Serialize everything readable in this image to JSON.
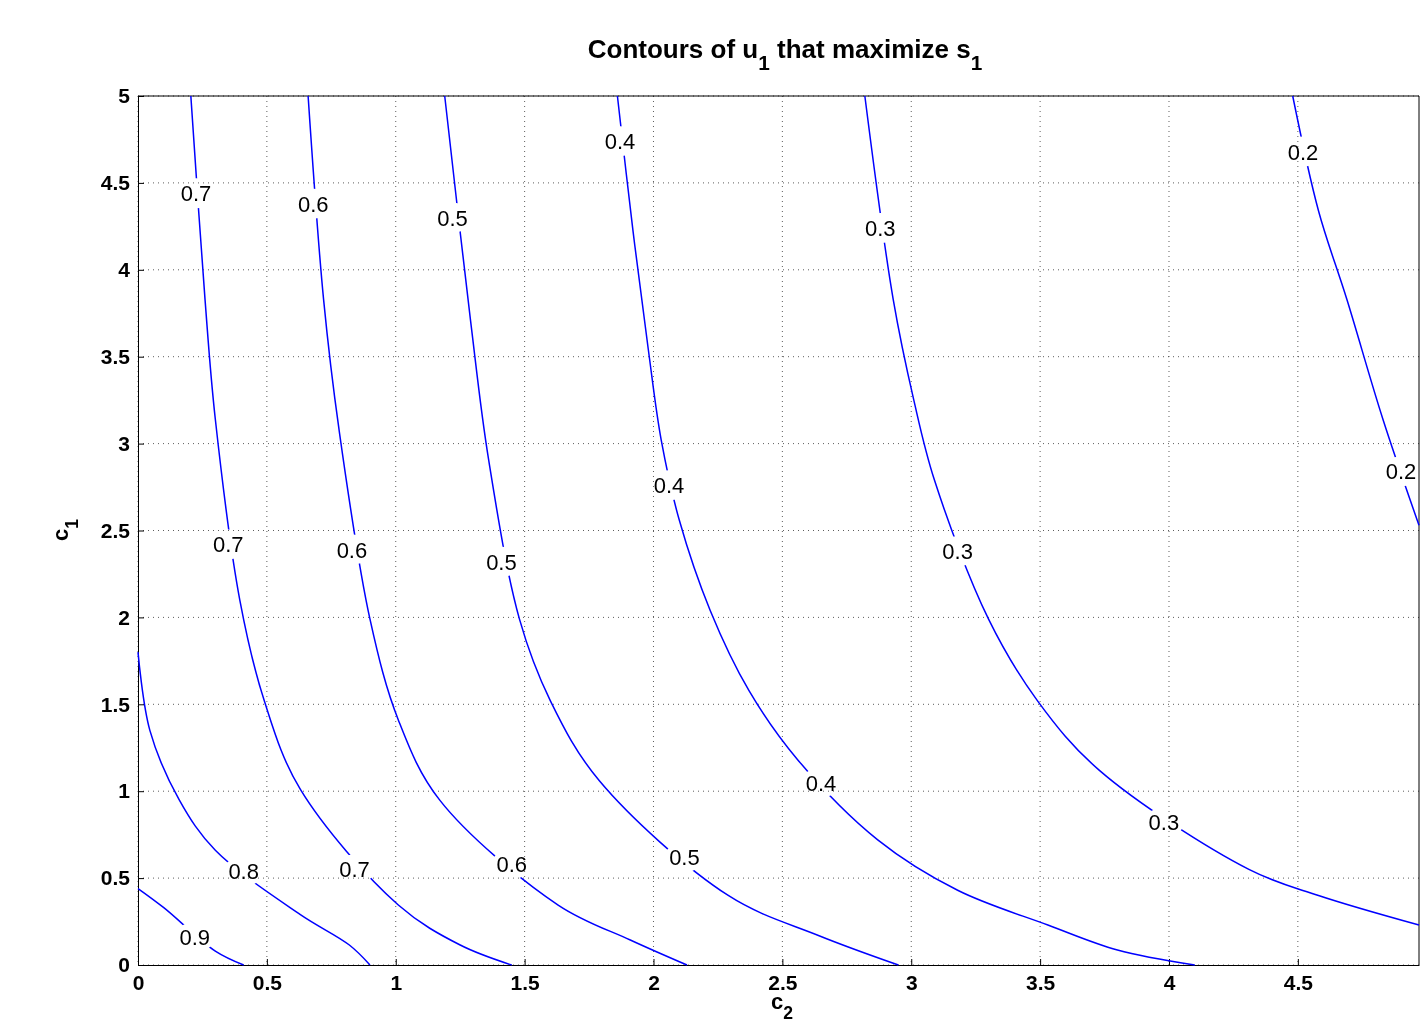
{
  "chart_data": {
    "type": "line",
    "title": "Contours of u$_{1}$ that maximize s$_{1}$",
    "xlabel": "c$_{2}$",
    "ylabel": "c$_{1}$",
    "xlim": [
      0,
      4.97
    ],
    "ylim": [
      0,
      5
    ],
    "xticks": [
      0,
      0.5,
      1,
      1.5,
      2,
      2.5,
      3,
      3.5,
      4,
      4.5
    ],
    "yticks": [
      0,
      0.5,
      1,
      1.5,
      2,
      2.5,
      3,
      3.5,
      4,
      4.5,
      5
    ],
    "grid": true,
    "marker": "none",
    "line_style": "solid",
    "series": [
      {
        "color": "#0000ff",
        "x": [
          0,
          0.1,
          0.3,
          0.41
        ],
        "values": [
          0.44,
          0.33,
          0.08,
          0
        ]
      },
      {
        "color": "#0000ff",
        "x": [
          0,
          0.046,
          0.16,
          0.3,
          0.63,
          0.82,
          0.9
        ],
        "values": [
          1.8,
          1.35,
          0.95,
          0.66,
          0.29,
          0.115,
          0
        ]
      },
      {
        "color": "#0000ff",
        "x": [
          0.205,
          0.26,
          0.3,
          0.395,
          0.49,
          0.63,
          1.01,
          1.25,
          1.45
        ],
        "values": [
          5,
          3.83,
          3.14,
          2.1,
          1.52,
          1.01,
          0.345,
          0.115,
          0
        ]
      },
      {
        "color": "#0000ff",
        "x": [
          0.66,
          0.72,
          0.78,
          0.9,
          1.01,
          1.17,
          1.63,
          1.91,
          2.13
        ],
        "values": [
          5,
          3.83,
          3.08,
          1.99,
          1.41,
          0.95,
          0.345,
          0.144,
          0
        ]
      },
      {
        "color": "#0000ff",
        "x": [
          1.19,
          1.29,
          1.36,
          1.48,
          1.6,
          1.79,
          2.29,
          2.64,
          2.95
        ],
        "values": [
          5,
          3.71,
          2.91,
          1.99,
          1.52,
          1.06,
          0.4,
          0.17,
          0
        ]
      },
      {
        "color": "#0000ff",
        "x": [
          1.86,
          1.92,
          1.98,
          2.03,
          2.1,
          2.22,
          2.37,
          2.56,
          2.87,
          3.18,
          3.53,
          3.8,
          4.1
        ],
        "values": [
          5,
          4.23,
          3.54,
          3.02,
          2.56,
          2.04,
          1.58,
          1.18,
          0.72,
          0.43,
          0.23,
          0.086,
          0
        ]
      },
      {
        "color": "#0000ff",
        "x": [
          2.82,
          2.93,
          3.01,
          3.09,
          3.3,
          3.49,
          3.73,
          4.31,
          4.58,
          4.97
        ],
        "values": [
          5,
          3.83,
          3.25,
          2.79,
          1.99,
          1.52,
          1.12,
          0.55,
          0.4,
          0.23
        ]
      },
      {
        "color": "#0000ff",
        "x": [
          4.48,
          4.58,
          4.69,
          4.83,
          4.97
        ],
        "values": [
          5,
          4.34,
          3.83,
          3.14,
          2.53
        ]
      }
    ],
    "annotations": [
      {
        "text": "0.9",
        "x": 0.22,
        "y": 0.16
      },
      {
        "text": "0.8",
        "x": 0.41,
        "y": 0.54
      },
      {
        "text": "0.7",
        "x": 0.225,
        "y": 4.44
      },
      {
        "text": "0.7",
        "x": 0.35,
        "y": 2.42
      },
      {
        "text": "0.7",
        "x": 0.84,
        "y": 0.55
      },
      {
        "text": "0.6",
        "x": 0.68,
        "y": 4.38
      },
      {
        "text": "0.6",
        "x": 0.83,
        "y": 2.39
      },
      {
        "text": "0.6",
        "x": 1.45,
        "y": 0.58
      },
      {
        "text": "0.5",
        "x": 1.22,
        "y": 4.3
      },
      {
        "text": "0.5",
        "x": 1.41,
        "y": 2.32
      },
      {
        "text": "0.5",
        "x": 2.12,
        "y": 0.62
      },
      {
        "text": "0.4",
        "x": 1.87,
        "y": 4.74
      },
      {
        "text": "0.4",
        "x": 2.06,
        "y": 2.76
      },
      {
        "text": "0.4",
        "x": 2.65,
        "y": 1.05
      },
      {
        "text": "0.3",
        "x": 2.88,
        "y": 4.24
      },
      {
        "text": "0.3",
        "x": 3.18,
        "y": 2.38
      },
      {
        "text": "0.3",
        "x": 3.98,
        "y": 0.82
      },
      {
        "text": "0.2",
        "x": 4.52,
        "y": 4.68
      },
      {
        "text": "0.2",
        "x": 4.9,
        "y": 2.84
      }
    ]
  }
}
